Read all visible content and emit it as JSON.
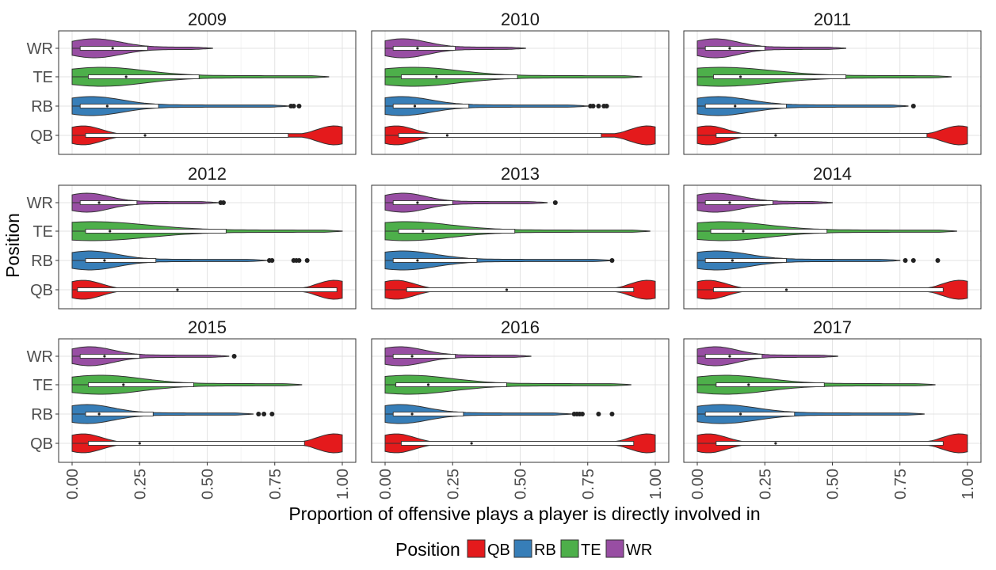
{
  "chart_data": {
    "type": "violin",
    "facet_titles": [
      "2009",
      "2010",
      "2011",
      "2012",
      "2013",
      "2014",
      "2015",
      "2016",
      "2017"
    ],
    "xlabel": "Proportion of offensive plays a player is directly involved in",
    "ylabel": "Position",
    "x_ticks": [
      "0.00",
      "0.25",
      "0.50",
      "0.75",
      "1.00"
    ],
    "xlim": [
      0,
      1
    ],
    "categories": [
      "WR",
      "TE",
      "RB",
      "QB"
    ],
    "legend": {
      "title": "Position",
      "position": "bottom",
      "items": [
        {
          "label": "QB",
          "color": "#E41A1C"
        },
        {
          "label": "RB",
          "color": "#377EB8"
        },
        {
          "label": "TE",
          "color": "#4DAF4A"
        },
        {
          "label": "WR",
          "color": "#984EA3"
        }
      ]
    },
    "colors": {
      "QB": "#E41A1C",
      "RB": "#377EB8",
      "TE": "#4DAF4A",
      "WR": "#984EA3"
    },
    "grid": true,
    "panels": [
      {
        "year": "2009",
        "series": [
          {
            "position": "WR",
            "min": 0.0,
            "q1": 0.03,
            "median": 0.15,
            "q3": 0.28,
            "max": 0.52,
            "outliers": []
          },
          {
            "position": "TE",
            "min": 0.0,
            "q1": 0.06,
            "median": 0.2,
            "q3": 0.47,
            "max": 0.95,
            "outliers": []
          },
          {
            "position": "RB",
            "min": 0.0,
            "q1": 0.03,
            "median": 0.13,
            "q3": 0.32,
            "max": 0.8,
            "outliers": [
              0.81,
              0.82,
              0.84
            ]
          },
          {
            "position": "QB",
            "min": 0.0,
            "q1": 0.05,
            "median": 0.27,
            "q3": 0.8,
            "max": 1.0,
            "outliers": []
          }
        ]
      },
      {
        "year": "2010",
        "series": [
          {
            "position": "WR",
            "min": 0.0,
            "q1": 0.03,
            "median": 0.12,
            "q3": 0.26,
            "max": 0.52,
            "outliers": []
          },
          {
            "position": "TE",
            "min": 0.0,
            "q1": 0.06,
            "median": 0.19,
            "q3": 0.49,
            "max": 0.95,
            "outliers": []
          },
          {
            "position": "RB",
            "min": 0.0,
            "q1": 0.03,
            "median": 0.11,
            "q3": 0.31,
            "max": 0.75,
            "outliers": [
              0.76,
              0.77,
              0.79,
              0.81,
              0.82
            ]
          },
          {
            "position": "QB",
            "min": 0.0,
            "q1": 0.05,
            "median": 0.23,
            "q3": 0.8,
            "max": 1.0,
            "outliers": []
          }
        ]
      },
      {
        "year": "2011",
        "series": [
          {
            "position": "WR",
            "min": 0.0,
            "q1": 0.03,
            "median": 0.12,
            "q3": 0.25,
            "max": 0.55,
            "outliers": []
          },
          {
            "position": "TE",
            "min": 0.0,
            "q1": 0.06,
            "median": 0.16,
            "q3": 0.55,
            "max": 0.94,
            "outliers": []
          },
          {
            "position": "RB",
            "min": 0.0,
            "q1": 0.03,
            "median": 0.14,
            "q3": 0.33,
            "max": 0.78,
            "outliers": [
              0.8
            ]
          },
          {
            "position": "QB",
            "min": 0.0,
            "q1": 0.07,
            "median": 0.29,
            "q3": 0.85,
            "max": 1.0,
            "outliers": []
          }
        ]
      },
      {
        "year": "2012",
        "series": [
          {
            "position": "WR",
            "min": 0.0,
            "q1": 0.03,
            "median": 0.1,
            "q3": 0.24,
            "max": 0.54,
            "outliers": [
              0.55,
              0.56
            ]
          },
          {
            "position": "TE",
            "min": 0.0,
            "q1": 0.05,
            "median": 0.14,
            "q3": 0.57,
            "max": 1.0,
            "outliers": []
          },
          {
            "position": "RB",
            "min": 0.0,
            "q1": 0.05,
            "median": 0.12,
            "q3": 0.31,
            "max": 0.72,
            "outliers": [
              0.73,
              0.74,
              0.82,
              0.83,
              0.84,
              0.87
            ]
          },
          {
            "position": "QB",
            "min": 0.0,
            "q1": 0.02,
            "median": 0.39,
            "q3": 0.98,
            "max": 1.0,
            "outliers": []
          }
        ]
      },
      {
        "year": "2013",
        "series": [
          {
            "position": "WR",
            "min": 0.0,
            "q1": 0.03,
            "median": 0.12,
            "q3": 0.25,
            "max": 0.6,
            "outliers": [
              0.63
            ]
          },
          {
            "position": "TE",
            "min": 0.0,
            "q1": 0.05,
            "median": 0.14,
            "q3": 0.48,
            "max": 0.98,
            "outliers": []
          },
          {
            "position": "RB",
            "min": 0.0,
            "q1": 0.03,
            "median": 0.12,
            "q3": 0.34,
            "max": 0.84,
            "outliers": [
              0.84
            ]
          },
          {
            "position": "QB",
            "min": 0.0,
            "q1": 0.08,
            "median": 0.45,
            "q3": 0.92,
            "max": 1.0,
            "outliers": []
          }
        ]
      },
      {
        "year": "2014",
        "series": [
          {
            "position": "WR",
            "min": 0.0,
            "q1": 0.03,
            "median": 0.12,
            "q3": 0.28,
            "max": 0.5,
            "outliers": []
          },
          {
            "position": "TE",
            "min": 0.0,
            "q1": 0.05,
            "median": 0.17,
            "q3": 0.48,
            "max": 0.96,
            "outliers": []
          },
          {
            "position": "RB",
            "min": 0.0,
            "q1": 0.03,
            "median": 0.13,
            "q3": 0.33,
            "max": 0.75,
            "outliers": [
              0.77,
              0.8,
              0.89
            ]
          },
          {
            "position": "QB",
            "min": 0.0,
            "q1": 0.06,
            "median": 0.33,
            "q3": 0.91,
            "max": 1.0,
            "outliers": []
          }
        ]
      },
      {
        "year": "2015",
        "series": [
          {
            "position": "WR",
            "min": 0.0,
            "q1": 0.03,
            "median": 0.12,
            "q3": 0.25,
            "max": 0.58,
            "outliers": [
              0.6
            ]
          },
          {
            "position": "TE",
            "min": 0.0,
            "q1": 0.06,
            "median": 0.19,
            "q3": 0.45,
            "max": 0.85,
            "outliers": []
          },
          {
            "position": "RB",
            "min": 0.0,
            "q1": 0.05,
            "median": 0.1,
            "q3": 0.3,
            "max": 0.67,
            "outliers": [
              0.69,
              0.71,
              0.74
            ]
          },
          {
            "position": "QB",
            "min": 0.0,
            "q1": 0.06,
            "median": 0.25,
            "q3": 0.86,
            "max": 1.0,
            "outliers": []
          }
        ]
      },
      {
        "year": "2016",
        "series": [
          {
            "position": "WR",
            "min": 0.0,
            "q1": 0.03,
            "median": 0.1,
            "q3": 0.26,
            "max": 0.54,
            "outliers": []
          },
          {
            "position": "TE",
            "min": 0.0,
            "q1": 0.04,
            "median": 0.16,
            "q3": 0.45,
            "max": 0.91,
            "outliers": []
          },
          {
            "position": "RB",
            "min": 0.0,
            "q1": 0.03,
            "median": 0.1,
            "q3": 0.29,
            "max": 0.69,
            "outliers": [
              0.7,
              0.71,
              0.72,
              0.73,
              0.79,
              0.84
            ]
          },
          {
            "position": "QB",
            "min": 0.0,
            "q1": 0.06,
            "median": 0.32,
            "q3": 0.92,
            "max": 1.0,
            "outliers": []
          }
        ]
      },
      {
        "year": "2017",
        "series": [
          {
            "position": "WR",
            "min": 0.0,
            "q1": 0.03,
            "median": 0.12,
            "q3": 0.24,
            "max": 0.52,
            "outliers": []
          },
          {
            "position": "TE",
            "min": 0.0,
            "q1": 0.07,
            "median": 0.19,
            "q3": 0.47,
            "max": 0.88,
            "outliers": []
          },
          {
            "position": "RB",
            "min": 0.0,
            "q1": 0.03,
            "median": 0.16,
            "q3": 0.36,
            "max": 0.84,
            "outliers": []
          },
          {
            "position": "QB",
            "min": 0.0,
            "q1": 0.07,
            "median": 0.29,
            "q3": 0.91,
            "max": 1.0,
            "outliers": []
          }
        ]
      }
    ]
  }
}
